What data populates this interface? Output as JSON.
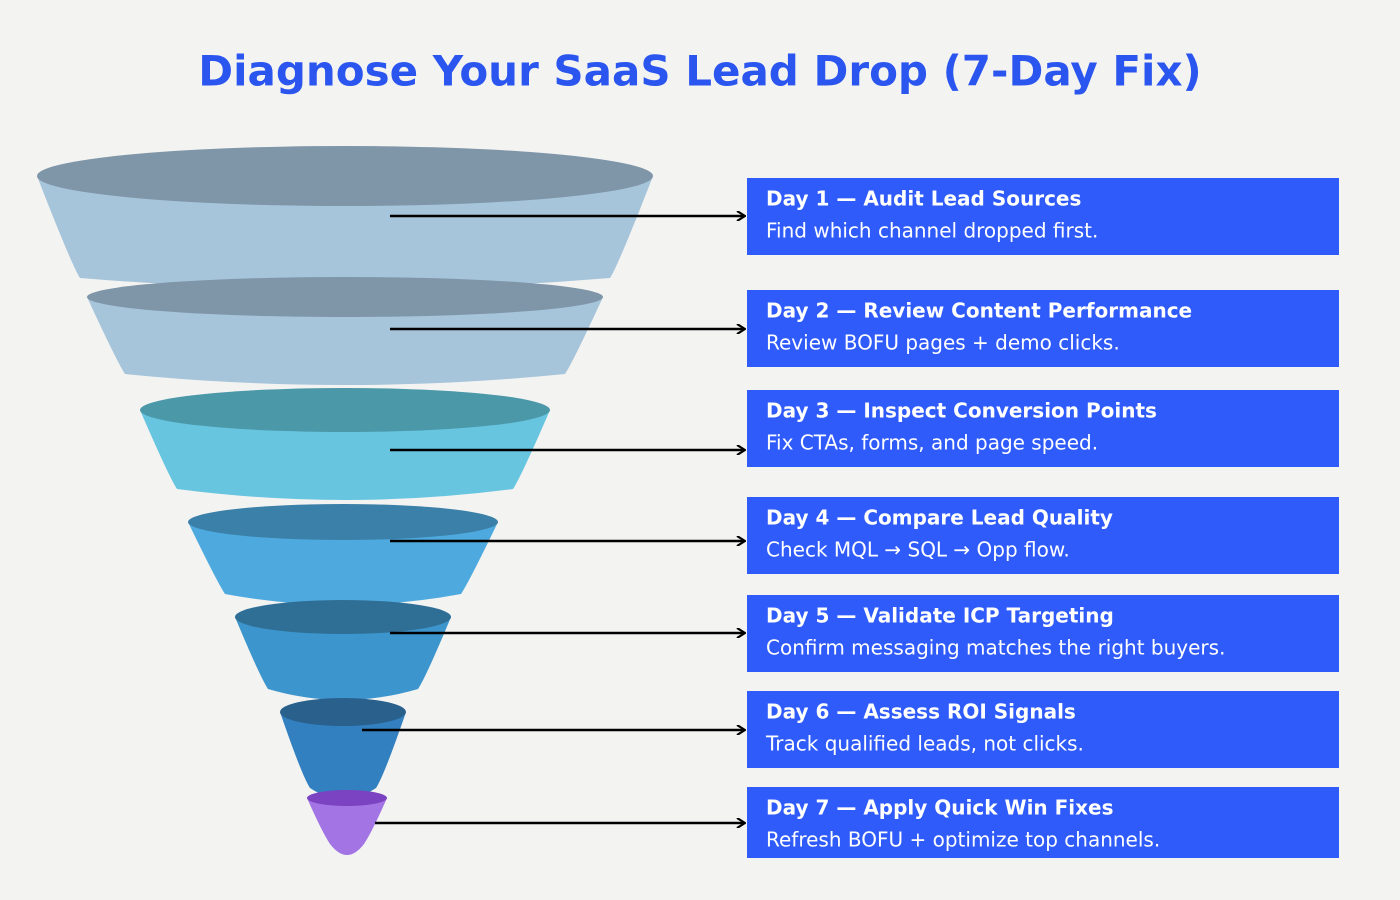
{
  "title": "Diagnose Your SaaS Lead Drop (7-Day Fix)",
  "steps": [
    {
      "title": "Day 1 — Audit Lead Sources",
      "description": "Find which channel dropped first."
    },
    {
      "title": "Day 2 — Review Content Performance",
      "description": "Review BOFU pages + demo clicks."
    },
    {
      "title": "Day 3 — Inspect Conversion Points",
      "description": "Fix CTAs, forms, and page speed."
    },
    {
      "title": "Day 4 — Compare Lead Quality",
      "description": "Check MQL → SQL → Opp flow."
    },
    {
      "title": "Day 5 — Validate ICP Targeting",
      "description": "Confirm messaging matches the right buyers."
    },
    {
      "title": "Day 6 — Assess ROI Signals",
      "description": "Track qualified leads, not clicks."
    },
    {
      "title": "Day 7 — Apply Quick Win Fixes",
      "description": "Refresh BOFU + optimize top channels."
    }
  ]
}
